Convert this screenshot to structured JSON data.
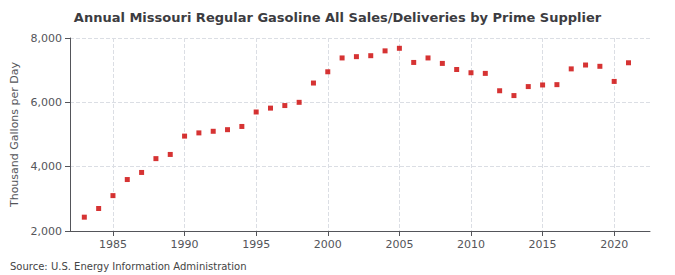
{
  "chart_data": {
    "type": "scatter",
    "title": "Annual Missouri Regular Gasoline All Sales/Deliveries by Prime Supplier",
    "ylabel": "Thousand Gallons per Day",
    "annotations": [
      "Source: U.S. Energy Information Administration"
    ],
    "x": [
      1983,
      1984,
      1985,
      1986,
      1987,
      1988,
      1989,
      1990,
      1991,
      1992,
      1993,
      1994,
      1995,
      1996,
      1997,
      1998,
      1999,
      2000,
      2001,
      2002,
      2003,
      2004,
      2005,
      2006,
      2007,
      2008,
      2009,
      2010,
      2011,
      2012,
      2013,
      2014,
      2015,
      2016,
      2017,
      2018,
      2019,
      2020,
      2021
    ],
    "values": [
      2430,
      2700,
      3100,
      3600,
      3820,
      4250,
      4380,
      4950,
      5050,
      5100,
      5150,
      5250,
      5700,
      5820,
      5900,
      6000,
      6600,
      6950,
      7380,
      7420,
      7450,
      7600,
      7680,
      7240,
      7380,
      7210,
      7020,
      6920,
      6900,
      6360,
      6210,
      6490,
      6540,
      6550,
      7040,
      7160,
      7120,
      6650,
      7230
    ],
    "color": "#cc0000",
    "marker": "square",
    "xlim": [
      1982,
      2022.5
    ],
    "xticks": [
      1985,
      1990,
      1995,
      2000,
      2005,
      2010,
      2015,
      2020
    ],
    "ylim": [
      2000,
      8000
    ],
    "yticks": [
      {
        "value": 2000,
        "label": "2,000"
      },
      {
        "value": 4000,
        "label": "4,000"
      },
      {
        "value": 6000,
        "label": "6,000"
      },
      {
        "value": 8000,
        "label": "8,000"
      }
    ],
    "grid": true
  }
}
